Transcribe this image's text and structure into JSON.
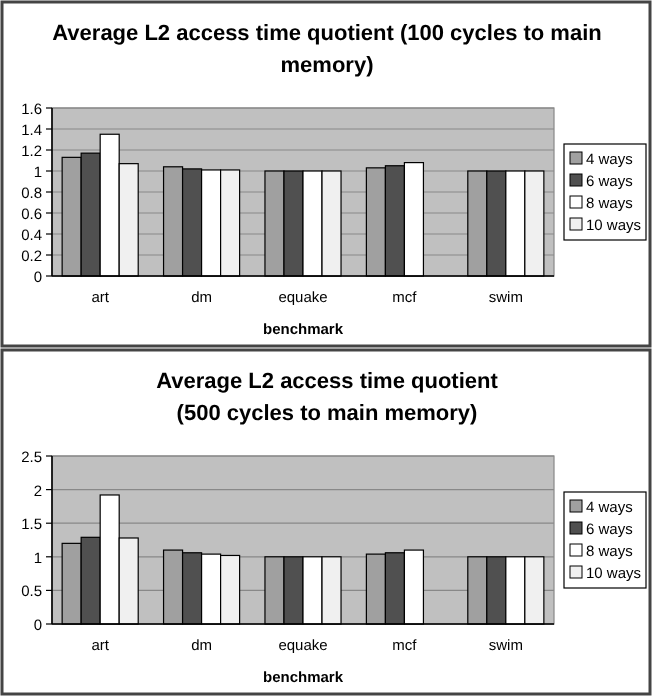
{
  "chart_data": [
    {
      "type": "bar",
      "title": "Average L2 access time quotient (100 cycles to main\nmemory)",
      "xlabel": "benchmark",
      "categories": [
        "art",
        "dm",
        "equake",
        "mcf",
        "swim"
      ],
      "series": [
        {
          "name": "4 ways",
          "color": "#a0a0a0",
          "values": [
            1.13,
            1.04,
            1.0,
            1.03,
            1.0
          ]
        },
        {
          "name": "6 ways",
          "color": "#505050",
          "values": [
            1.17,
            1.02,
            1.0,
            1.05,
            1.0
          ]
        },
        {
          "name": "8 ways",
          "color": "#ffffff",
          "values": [
            1.35,
            1.01,
            1.0,
            1.08,
            1.0
          ]
        },
        {
          "name": "10 ways",
          "color": "#f0f0f0",
          "values": [
            1.07,
            1.01,
            1.0,
            null,
            1.0
          ]
        }
      ],
      "ylim": [
        0,
        1.6
      ],
      "yticks": [
        0,
        0.2,
        0.4,
        0.6,
        0.8,
        1,
        1.2,
        1.4,
        1.6
      ],
      "grid": "y",
      "legend": "right"
    },
    {
      "type": "bar",
      "title": "Average L2 access time quotient\n(500 cycles to main memory)",
      "xlabel": "benchmark",
      "categories": [
        "art",
        "dm",
        "equake",
        "mcf",
        "swim"
      ],
      "series": [
        {
          "name": "4 ways",
          "color": "#a0a0a0",
          "values": [
            1.2,
            1.1,
            1.0,
            1.04,
            1.0
          ]
        },
        {
          "name": "6 ways",
          "color": "#505050",
          "values": [
            1.29,
            1.06,
            1.0,
            1.06,
            1.0
          ]
        },
        {
          "name": "8 ways",
          "color": "#ffffff",
          "values": [
            1.92,
            1.04,
            1.0,
            1.1,
            1.0
          ]
        },
        {
          "name": "10 ways",
          "color": "#f0f0f0",
          "values": [
            1.28,
            1.02,
            1.0,
            null,
            1.0
          ]
        }
      ],
      "ylim": [
        0,
        2.5
      ],
      "yticks": [
        0,
        0.5,
        1,
        1.5,
        2,
        2.5
      ],
      "grid": "y",
      "legend": "right"
    }
  ]
}
